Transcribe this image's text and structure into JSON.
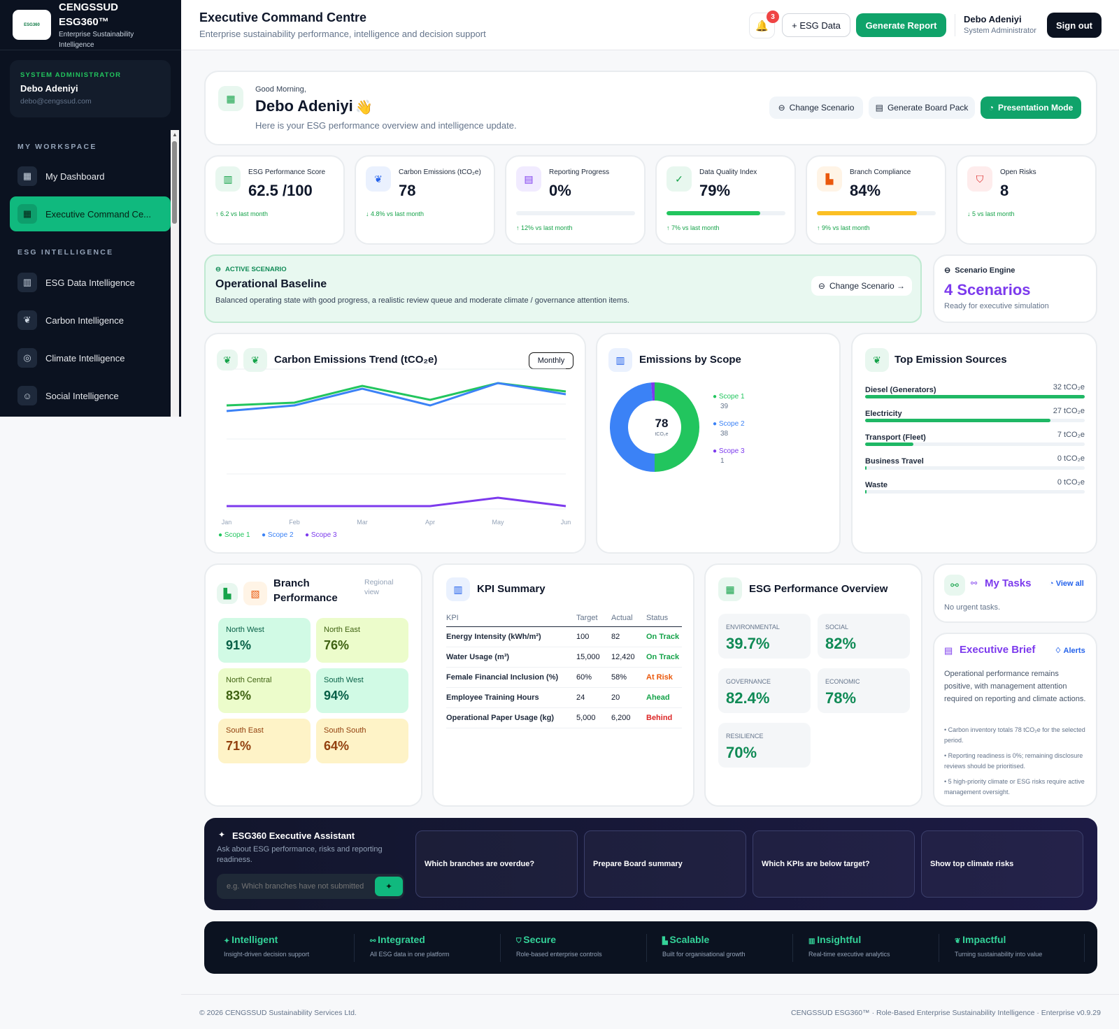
{
  "sidebar": {
    "brand_line1": "CENGSSUD",
    "brand_line2": "ESG360™",
    "brand_tagline": "Enterprise Sustainability Intelligence",
    "user_role": "SYSTEM ADMINISTRATOR",
    "user_name": "Debo Adeniyi",
    "user_email": "debo@cengssud.com",
    "section_workspace": "MY WORKSPACE",
    "section_intel": "ESG INTELLIGENCE",
    "items": [
      {
        "label": "My Dashboard",
        "icon": "grid-icon"
      },
      {
        "label": "Executive Command Ce...",
        "icon": "grid-icon"
      },
      {
        "label": "ESG Data Intelligence",
        "icon": "bar-chart-icon"
      },
      {
        "label": "Carbon Intelligence",
        "icon": "leaf-icon"
      },
      {
        "label": "Climate Intelligence",
        "icon": "globe-icon"
      },
      {
        "label": "Social Intelligence",
        "icon": "users-icon"
      }
    ]
  },
  "topbar": {
    "title": "Executive Command Centre",
    "subtitle": "Enterprise sustainability performance, intelligence and decision support",
    "notif_count": "3",
    "esg_data_label": "+ ESG Data",
    "generate_report_label": "Generate Report",
    "user_name": "Debo Adeniyi",
    "user_role": "System Administrator",
    "signout_label": "Sign out"
  },
  "greeting": {
    "small": "Good Morning,",
    "name": "Debo Adeniyi",
    "wave": "👋",
    "sub": "Here is your ESG performance overview and intelligence update.",
    "change_scenario": "Change Scenario",
    "board_pack": "Generate Board Pack",
    "presentation": "Presentation Mode"
  },
  "kpis": [
    {
      "label": "ESG Performance Score",
      "value": "62.5 /100",
      "delta": "↑ 6.2 vs last month",
      "icon": "bar-chart-icon"
    },
    {
      "label": "Carbon Emissions (tCO₂e)",
      "value": "78",
      "delta": "↓ 4.8% vs last month",
      "icon": "leaf-icon"
    },
    {
      "label": "Reporting Progress",
      "value": "0%",
      "delta": "↑ 12% vs last month",
      "progress": 0,
      "icon": "document-icon"
    },
    {
      "label": "Data Quality Index",
      "value": "79%",
      "delta": "↑ 7% vs last month",
      "progress": 0.79,
      "icon": "check-icon"
    },
    {
      "label": "Branch Compliance",
      "value": "84%",
      "delta": "↑ 9% vs last month",
      "progress": 0.84,
      "icon": "building-icon"
    },
    {
      "label": "Open Risks",
      "value": "8",
      "delta": "↓ 5 vs last month",
      "icon": "shield-icon"
    }
  ],
  "scenario": {
    "label": "ACTIVE SCENARIO",
    "title": "Operational Baseline",
    "desc": "Balanced operating state with good progress, a realistic review queue and moderate climate / governance attention items.",
    "change": "Change Scenario →"
  },
  "engine": {
    "label": "Scenario Engine",
    "value": "4 Scenarios",
    "sub": "Ready for executive simulation"
  },
  "trend": {
    "title": "Carbon Emissions Trend (tCO₂e)",
    "period": "Monthly"
  },
  "pie": {
    "title": "Emissions by Scope",
    "center_value": "78",
    "center_unit": "tCO₂e"
  },
  "sources": {
    "title": "Top Emission Sources",
    "items": [
      {
        "name": "Diesel (Generators)",
        "value": "32 tCO₂e",
        "amount": 32
      },
      {
        "name": "Electricity",
        "value": "27 tCO₂e",
        "amount": 27
      },
      {
        "name": "Transport (Fleet)",
        "value": "7 tCO₂e",
        "amount": 7
      },
      {
        "name": "Business Travel",
        "value": "0 tCO₂e",
        "amount": 0
      },
      {
        "name": "Waste",
        "value": "0 tCO₂e",
        "amount": 0
      }
    ]
  },
  "branch": {
    "title_line1": "Branch",
    "title_line2": "Performance",
    "regional": "Regional view",
    "tiles": [
      {
        "name": "North West",
        "value": "91%",
        "bg": "#d1fae5",
        "fg": "#065f46"
      },
      {
        "name": "North East",
        "value": "76%",
        "bg": "#ecfccb",
        "fg": "#3f6212"
      },
      {
        "name": "North Central",
        "value": "83%",
        "bg": "#ecfccb",
        "fg": "#3f6212"
      },
      {
        "name": "South West",
        "value": "94%",
        "bg": "#d1fae5",
        "fg": "#065f46"
      },
      {
        "name": "South East",
        "value": "71%",
        "bg": "#fef3c7",
        "fg": "#92400e"
      },
      {
        "name": "South South",
        "value": "64%",
        "bg": "#fef3c7",
        "fg": "#92400e"
      }
    ]
  },
  "kpi_summary": {
    "title": "KPI Summary",
    "headers": [
      "KPI",
      "Target",
      "Actual",
      "Status"
    ],
    "rows": [
      {
        "kpi": "Energy Intensity (kWh/m²)",
        "target": "100",
        "actual": "82",
        "status": "On Track",
        "color": "#16a34a"
      },
      {
        "kpi": "Water Usage (m³)",
        "target": "15,000",
        "actual": "12,420",
        "status": "On Track",
        "color": "#16a34a"
      },
      {
        "kpi": "Female Financial Inclusion (%)",
        "target": "60%",
        "actual": "58%",
        "status": "At Risk",
        "color": "#ea580c"
      },
      {
        "kpi": "Employee Training Hours",
        "target": "24",
        "actual": "20",
        "status": "Ahead",
        "color": "#16a34a"
      },
      {
        "kpi": "Operational Paper Usage (kg)",
        "target": "5,000",
        "actual": "6,200",
        "status": "Behind",
        "color": "#dc2626"
      }
    ]
  },
  "perf": {
    "title": "ESG Performance Overview",
    "tiles": [
      {
        "name": "ENVIRONMENTAL",
        "value": "39.7%"
      },
      {
        "name": "SOCIAL",
        "value": "82%"
      },
      {
        "name": "GOVERNANCE",
        "value": "82.4%"
      },
      {
        "name": "ECONOMIC",
        "value": "78%"
      },
      {
        "name": "RESILIENCE",
        "value": "70%"
      }
    ]
  },
  "tasks": {
    "title": "My Tasks",
    "view_all": "View all",
    "empty": "No urgent tasks."
  },
  "brief": {
    "title": "Executive Brief",
    "alerts": "Alerts",
    "text": "Operational performance remains positive, with management attention required on reporting and climate actions.",
    "bullets": [
      "• Carbon inventory totals 78 tCO₂e for the selected period.",
      "• Reporting readiness is 0%; remaining disclosure reviews should be prioritised.",
      "• 5 high-priority climate or ESG risks require active management oversight."
    ]
  },
  "assistant": {
    "title": "ESG360 Executive Assistant",
    "sub": "Ask about ESG performance, risks and reporting readiness.",
    "placeholder": "e.g. Which branches have not submitted",
    "questions": [
      "Which branches are overdue?",
      "Prepare Board summary",
      "Which KPIs are below target?",
      "Show top climate risks"
    ]
  },
  "features": [
    {
      "title": "Intelligent",
      "sub": "Insight-driven decision support",
      "icon": "sparkle-icon"
    },
    {
      "title": "Integrated",
      "sub": "All ESG data in one platform",
      "icon": "link-icon"
    },
    {
      "title": "Secure",
      "sub": "Role-based enterprise controls",
      "icon": "shield-icon"
    },
    {
      "title": "Scalable",
      "sub": "Built for organisational growth",
      "icon": "building-icon"
    },
    {
      "title": "Insightful",
      "sub": "Real-time executive analytics",
      "icon": "bar-chart-icon"
    },
    {
      "title": "Impactful",
      "sub": "Turning sustainability into value",
      "icon": "leaf-icon"
    }
  ],
  "footer": {
    "left": "© 2026 CENGSSUD Sustainability Services Ltd.",
    "right": "CENGSSUD ESG360™ · Role-Based Enterprise Sustainability Intelligence · Enterprise v0.9.29"
  },
  "chart_data": [
    {
      "type": "line",
      "categories": [
        "Jan",
        "Feb",
        "Mar",
        "Apr",
        "May",
        "Jun"
      ],
      "series": [
        {
          "name": "Scope 1",
          "values": [
            37,
            38,
            44,
            39,
            45,
            42
          ],
          "color": "#22c55e"
        },
        {
          "name": "Scope 2",
          "values": [
            35,
            37,
            43,
            37,
            45,
            41
          ],
          "color": "#3b82f6"
        },
        {
          "name": "Scope 3",
          "values": [
            1,
            1,
            1,
            1,
            4,
            1
          ],
          "color": "#7c3aed"
        }
      ],
      "ylim": [
        0,
        50
      ]
    },
    {
      "type": "pie",
      "categories": [
        "Scope 1",
        "Scope 2",
        "Scope 3"
      ],
      "values": [
        39,
        38,
        1
      ],
      "colors": [
        "#22c55e",
        "#3b82f6",
        "#7c3aed"
      ]
    }
  ]
}
